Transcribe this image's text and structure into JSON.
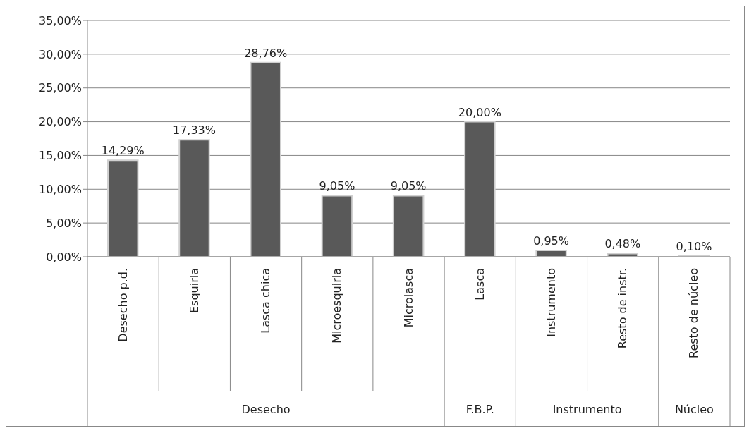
{
  "chart_data": {
    "type": "bar",
    "categories": [
      "Desecho p.d.",
      "Esquirla",
      "Lasca chica",
      "Microesquirla",
      "Microlasca",
      "Lasca",
      "Instrumento",
      "Resto de instr.",
      "Resto de núcleo"
    ],
    "values": [
      14.29,
      17.33,
      28.76,
      9.05,
      9.05,
      20.0,
      0.95,
      0.48,
      0.1
    ],
    "color": "#595959",
    "ylim": [
      0,
      35
    ],
    "yticks": [
      {
        "value": 0,
        "label": "0,00%"
      },
      {
        "value": 5,
        "label": "5,00%"
      },
      {
        "value": 10,
        "label": "10,00%"
      },
      {
        "value": 15,
        "label": "15,00%"
      },
      {
        "value": 20,
        "label": "20,00%"
      },
      {
        "value": 25,
        "label": "25,00%"
      },
      {
        "value": 30,
        "label": "30,00%"
      },
      {
        "value": 35,
        "label": "35,00%"
      }
    ],
    "value_labels": [
      "14,29%",
      "17,33%",
      "28,76%",
      "9,05%",
      "9,05%",
      "20,00%",
      "0,95%",
      "0,48%",
      "0,10%"
    ],
    "grid": "y",
    "annotations": [
      "Desecho",
      "F.B.P.",
      "Instrumento",
      "Núcleo"
    ]
  }
}
